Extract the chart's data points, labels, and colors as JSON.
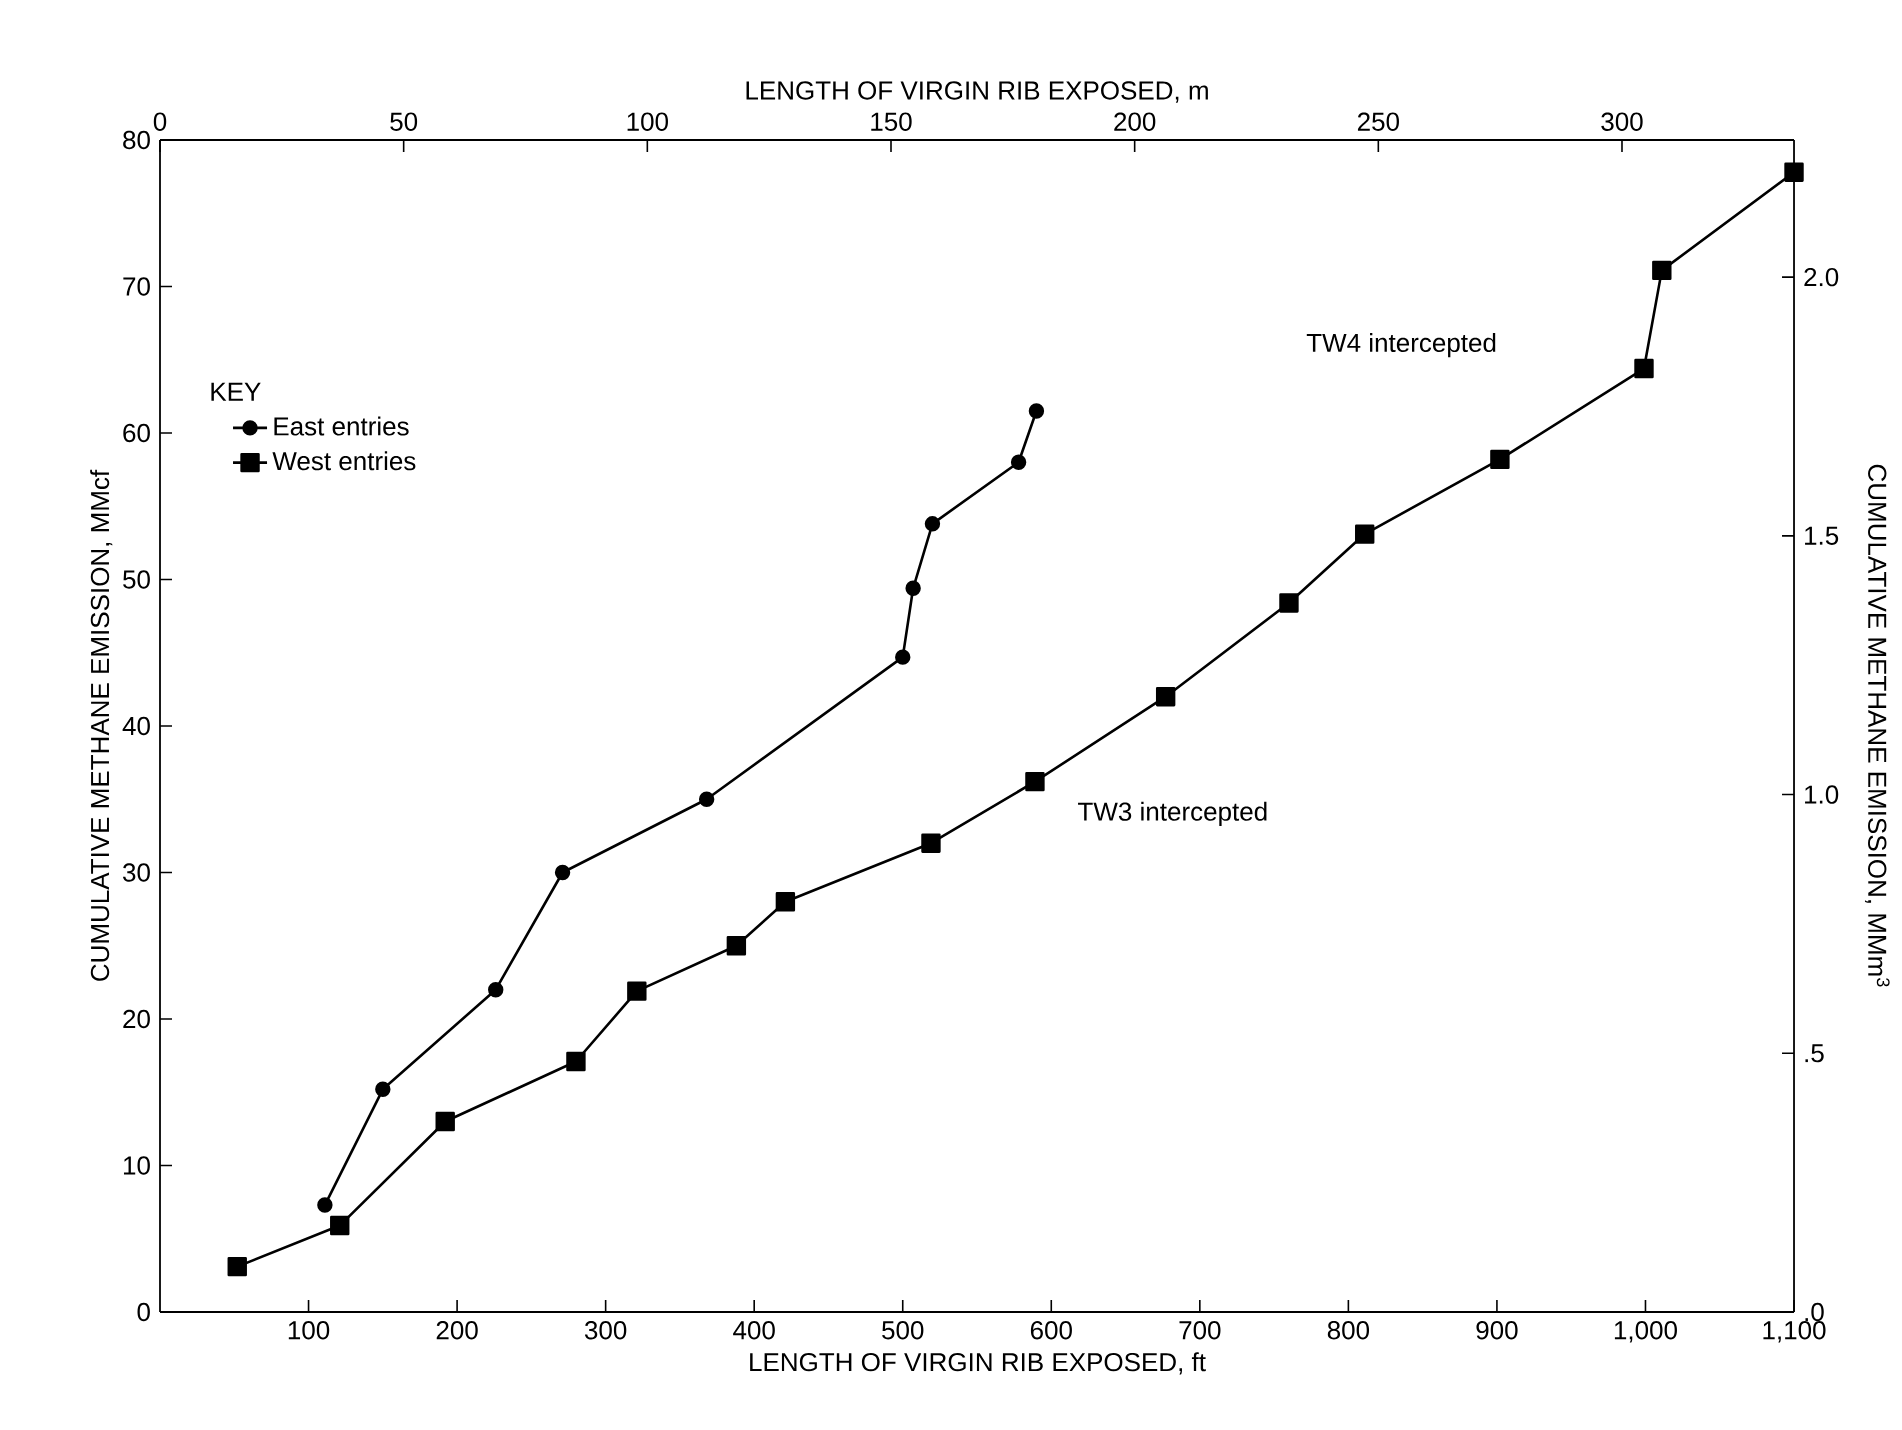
{
  "chart_data": {
    "type": "line",
    "xlabel": "LENGTH OF VIRGIN RIB EXPOSED, ft",
    "x2label": "LENGTH OF VIRGIN RIB EXPOSED, m",
    "ylabel": "CUMULATIVE METHANE EMISSION, MMcf",
    "y2label": "CUMULATIVE METHANE EMISSION, MMm$^{3}$",
    "legend_title": "KEY",
    "legend": "top left",
    "xlim": [
      0,
      1100
    ],
    "xticks": [
      100,
      200,
      300,
      400,
      500,
      600,
      700,
      800,
      900,
      {
        "value": 1000,
        "label": "1,000"
      },
      {
        "value": 1100,
        "label": "1,100"
      }
    ],
    "x2lim": [
      0,
      335.3
    ],
    "x2ticks": [
      0,
      50,
      100,
      150,
      200,
      250,
      300
    ],
    "ylim": [
      0,
      80
    ],
    "yticks": [
      0,
      10,
      20,
      30,
      40,
      50,
      60,
      70,
      80
    ],
    "y2lim": [
      0,
      2.265
    ],
    "y2ticks": [
      {
        "value": 0,
        "label": ".0"
      },
      {
        "value": 0.5,
        "label": ".5"
      },
      {
        "value": 1,
        "label": "1.0"
      },
      {
        "value": 1.5,
        "label": "1.5"
      },
      {
        "value": 2,
        "label": "2.0"
      }
    ],
    "series": [
      {
        "name": "East entries",
        "color": "#000000",
        "marker": "circle",
        "x": [
          111,
          150,
          226,
          271,
          368,
          500,
          507,
          520,
          578,
          590
        ],
        "values": [
          7.3,
          15.2,
          22,
          30,
          35,
          44.7,
          49.4,
          53.8,
          58,
          61.5
        ]
      },
      {
        "name": "West entries",
        "color": "#000000",
        "marker": "square",
        "x": [
          52,
          121,
          192,
          280,
          321,
          388,
          421,
          519,
          589,
          677,
          760,
          811,
          902,
          999,
          1011,
          1100
        ],
        "values": [
          3.1,
          5.9,
          13,
          17.1,
          21.9,
          25,
          28,
          32,
          36.2,
          42,
          48.4,
          53.1,
          58.2,
          64.4,
          71.1,
          77.8
        ]
      }
    ],
    "annotations": [
      "TW3 intercepted",
      "TW4 intercepted"
    ]
  }
}
